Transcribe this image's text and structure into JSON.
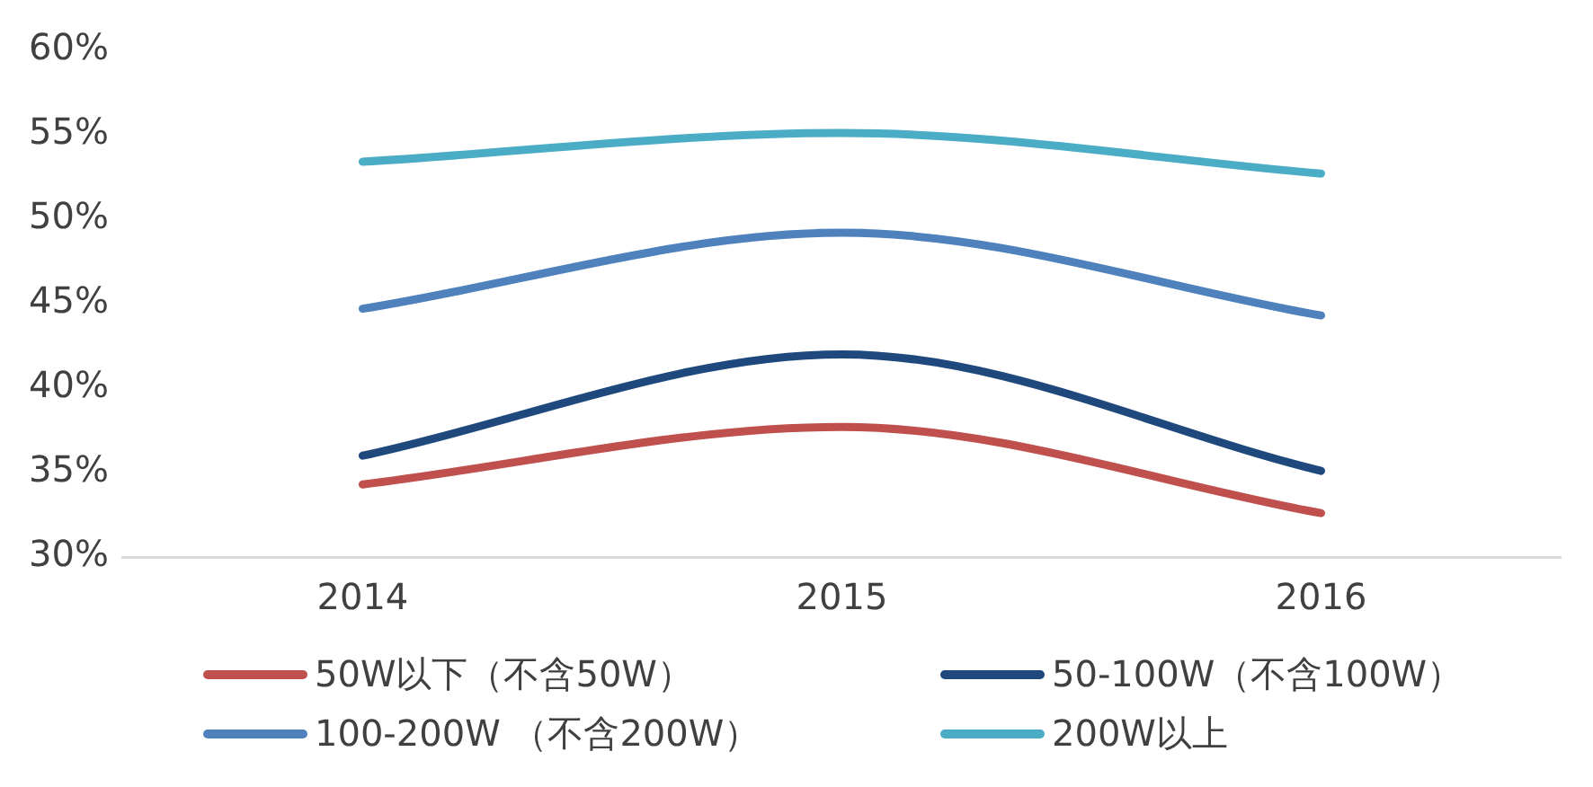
{
  "chart_data": {
    "type": "line",
    "categories": [
      "2014",
      "2015",
      "2016"
    ],
    "series": [
      {
        "name": "50W以下（不含50W）",
        "color": "#c0504d",
        "values": [
          34.3,
          37.7,
          32.6
        ]
      },
      {
        "name": "50-100W（不含100W）",
        "color": "#1f497d",
        "values": [
          36.0,
          42.0,
          35.1
        ]
      },
      {
        "name": "100-200W （不含200W）",
        "color": "#4f81bd",
        "values": [
          44.7,
          49.2,
          44.3
        ]
      },
      {
        "name": "200W以上",
        "color": "#4bacc6",
        "values": [
          53.4,
          55.1,
          52.7
        ]
      }
    ],
    "ylim": [
      30,
      60
    ],
    "yticks": [
      {
        "value": 30,
        "label": "30%"
      },
      {
        "value": 35,
        "label": "35%"
      },
      {
        "value": 40,
        "label": "40%"
      },
      {
        "value": 45,
        "label": "45%"
      },
      {
        "value": 50,
        "label": "50%"
      },
      {
        "value": 55,
        "label": "55%"
      },
      {
        "value": 60,
        "label": "60%"
      }
    ],
    "grid": false,
    "legend": "bottom",
    "marker": "none",
    "line_style": "solid"
  }
}
